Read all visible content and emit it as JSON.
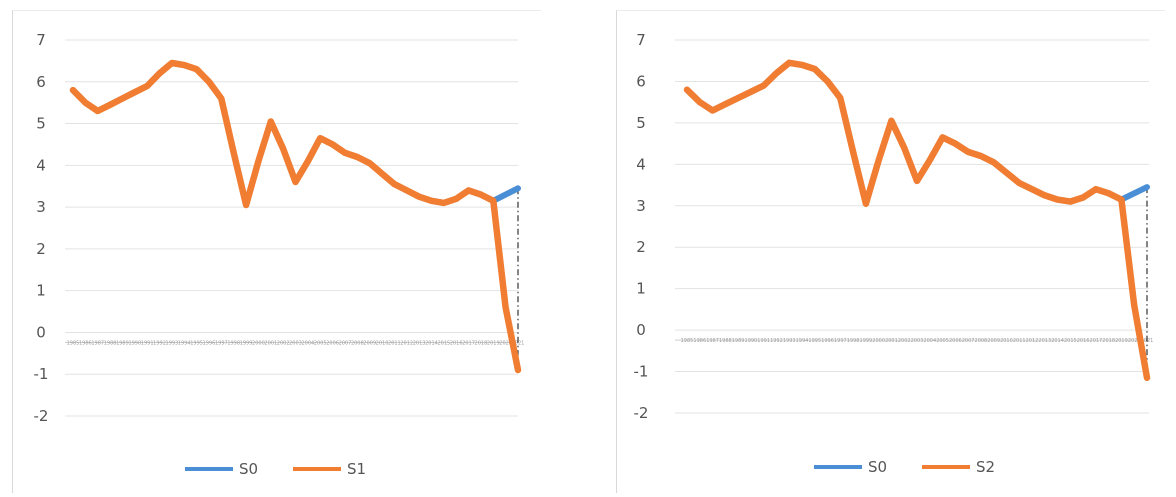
{
  "chart_data": [
    {
      "type": "line",
      "ylim": [
        -2,
        7
      ],
      "yticks": [
        "7",
        "6",
        "5",
        "4",
        "3",
        "2",
        "1",
        "0",
        "-1",
        "-2"
      ],
      "categories": [
        "1985",
        "1986",
        "1987",
        "1988",
        "1989",
        "1990",
        "1991",
        "1992",
        "1993",
        "1994",
        "1995",
        "1996",
        "1997",
        "1998",
        "1999",
        "2000",
        "2001",
        "2002",
        "2003",
        "2004",
        "2005",
        "2006",
        "2007",
        "2008",
        "2009",
        "2010",
        "2011",
        "2012",
        "2013",
        "2014",
        "2015",
        "2016",
        "2017",
        "2018",
        "2019",
        "2020",
        "2021"
      ],
      "grid": true,
      "legend_position": "bottom",
      "series": [
        {
          "name": "S0",
          "color": "#4a8fd6",
          "values": [
            5.8,
            5.5,
            5.3,
            5.45,
            5.6,
            5.75,
            5.9,
            6.2,
            6.45,
            6.4,
            6.3,
            6.0,
            5.6,
            4.3,
            3.05,
            4.1,
            5.05,
            4.4,
            3.6,
            4.1,
            4.65,
            4.5,
            4.3,
            4.2,
            4.05,
            3.8,
            3.55,
            3.4,
            3.25,
            3.15,
            3.1,
            3.2,
            3.4,
            3.3,
            3.15,
            3.3,
            3.45
          ]
        },
        {
          "name": "S1",
          "color": "#f07d32",
          "values": [
            5.8,
            5.5,
            5.3,
            5.45,
            5.6,
            5.75,
            5.9,
            6.2,
            6.45,
            6.4,
            6.3,
            6.0,
            5.6,
            4.3,
            3.05,
            4.1,
            5.05,
            4.4,
            3.6,
            4.1,
            4.65,
            4.5,
            4.3,
            4.2,
            4.05,
            3.8,
            3.55,
            3.4,
            3.25,
            3.15,
            3.1,
            3.2,
            3.4,
            3.3,
            3.15,
            0.6,
            -0.9
          ]
        }
      ]
    },
    {
      "type": "line",
      "ylim": [
        -2,
        7
      ],
      "yticks": [
        "7",
        "6",
        "5",
        "4",
        "3",
        "2",
        "1",
        "0",
        "-1",
        "-2"
      ],
      "categories": [
        "1985",
        "1986",
        "1987",
        "1988",
        "1989",
        "1990",
        "1991",
        "1992",
        "1993",
        "1994",
        "1995",
        "1996",
        "1997",
        "1998",
        "1999",
        "2000",
        "2001",
        "2002",
        "2003",
        "2004",
        "2005",
        "2006",
        "2007",
        "2008",
        "2009",
        "2010",
        "2011",
        "2012",
        "2013",
        "2014",
        "2015",
        "2016",
        "2017",
        "2018",
        "2019",
        "2020",
        "2021"
      ],
      "grid": true,
      "legend_position": "bottom",
      "series": [
        {
          "name": "S0",
          "color": "#4a8fd6",
          "values": [
            5.8,
            5.5,
            5.3,
            5.45,
            5.6,
            5.75,
            5.9,
            6.2,
            6.45,
            6.4,
            6.3,
            6.0,
            5.6,
            4.3,
            3.05,
            4.1,
            5.05,
            4.4,
            3.6,
            4.1,
            4.65,
            4.5,
            4.3,
            4.2,
            4.05,
            3.8,
            3.55,
            3.4,
            3.25,
            3.15,
            3.1,
            3.2,
            3.4,
            3.3,
            3.15,
            3.3,
            3.45
          ]
        },
        {
          "name": "S2",
          "color": "#f07d32",
          "values": [
            5.8,
            5.5,
            5.3,
            5.45,
            5.6,
            5.75,
            5.9,
            6.2,
            6.45,
            6.4,
            6.3,
            6.0,
            5.6,
            4.3,
            3.05,
            4.1,
            5.05,
            4.4,
            3.6,
            4.1,
            4.65,
            4.5,
            4.3,
            4.2,
            4.05,
            3.8,
            3.55,
            3.4,
            3.25,
            3.15,
            3.1,
            3.2,
            3.4,
            3.3,
            3.15,
            0.6,
            -1.15
          ]
        }
      ]
    }
  ]
}
